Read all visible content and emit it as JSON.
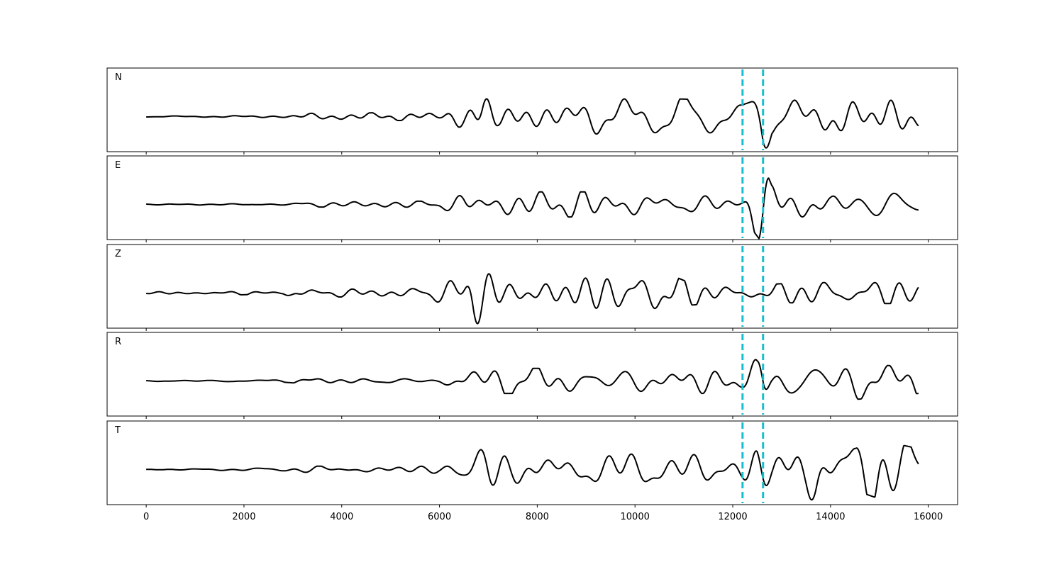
{
  "chart_data": {
    "type": "line",
    "title": "",
    "xlabel": "",
    "ylabel": "",
    "xlim": [
      -800,
      16600
    ],
    "x_ticks": [
      0,
      2000,
      4000,
      6000,
      8000,
      10000,
      12000,
      14000,
      16000
    ],
    "x_tick_labels": [
      "0",
      "2000",
      "4000",
      "6000",
      "8000",
      "10000",
      "12000",
      "14000",
      "16000"
    ],
    "sample_range": [
      0,
      15800
    ],
    "grid": false,
    "legend": "none",
    "trace_color": "#000000",
    "pick_color": "#17becf",
    "picks": [
      12200,
      12620
    ],
    "panels": [
      {
        "label": "N",
        "ylim": [
          -1,
          1
        ],
        "envelope": [
          [
            0,
            0.01
          ],
          [
            2800,
            0.03
          ],
          [
            3300,
            0.08
          ],
          [
            6000,
            0.1
          ],
          [
            6500,
            0.3
          ],
          [
            6900,
            0.7
          ],
          [
            7200,
            0.35
          ],
          [
            10000,
            0.45
          ],
          [
            11500,
            0.4
          ],
          [
            12200,
            0.35
          ],
          [
            12500,
            0.8
          ],
          [
            12620,
            1.0
          ],
          [
            12800,
            0.5
          ],
          [
            13600,
            0.6
          ],
          [
            14000,
            0.95
          ],
          [
            14500,
            0.6
          ],
          [
            15000,
            0.7
          ],
          [
            15800,
            0.5
          ]
        ]
      },
      {
        "label": "E",
        "ylim": [
          -1,
          1
        ],
        "envelope": [
          [
            0,
            0.01
          ],
          [
            2800,
            0.02
          ],
          [
            3300,
            0.06
          ],
          [
            6000,
            0.08
          ],
          [
            6500,
            0.35
          ],
          [
            7000,
            0.3
          ],
          [
            10000,
            0.3
          ],
          [
            12200,
            0.2
          ],
          [
            12400,
            0.6
          ],
          [
            12620,
            0.95
          ],
          [
            12800,
            0.45
          ],
          [
            13700,
            0.55
          ],
          [
            14000,
            0.35
          ],
          [
            15800,
            0.3
          ]
        ]
      },
      {
        "label": "Z",
        "ylim": [
          -1,
          1
        ],
        "envelope": [
          [
            0,
            0.01
          ],
          [
            600,
            0.06
          ],
          [
            2800,
            0.03
          ],
          [
            3100,
            0.2
          ],
          [
            3500,
            0.08
          ],
          [
            5800,
            0.15
          ],
          [
            6400,
            0.4
          ],
          [
            6700,
            1.0
          ],
          [
            7000,
            0.7
          ],
          [
            7300,
            0.45
          ],
          [
            10500,
            0.55
          ],
          [
            11000,
            0.3
          ],
          [
            12200,
            0.2
          ],
          [
            12600,
            0.2
          ],
          [
            13500,
            0.25
          ],
          [
            15800,
            0.25
          ]
        ]
      },
      {
        "label": "R",
        "ylim": [
          -1,
          1
        ],
        "envelope": [
          [
            0,
            0.01
          ],
          [
            2800,
            0.03
          ],
          [
            3300,
            0.07
          ],
          [
            6000,
            0.06
          ],
          [
            6500,
            0.35
          ],
          [
            7000,
            0.3
          ],
          [
            10000,
            0.3
          ],
          [
            12200,
            0.3
          ],
          [
            12500,
            0.6
          ],
          [
            12620,
            1.0
          ],
          [
            12800,
            0.4
          ],
          [
            13500,
            0.5
          ],
          [
            14000,
            0.5
          ],
          [
            15800,
            0.3
          ]
        ]
      },
      {
        "label": "T",
        "ylim": [
          -1,
          1
        ],
        "envelope": [
          [
            0,
            0.01
          ],
          [
            2800,
            0.04
          ],
          [
            3500,
            0.08
          ],
          [
            6000,
            0.1
          ],
          [
            6500,
            0.35
          ],
          [
            7000,
            0.6
          ],
          [
            7500,
            0.35
          ],
          [
            10000,
            0.4
          ],
          [
            12000,
            0.4
          ],
          [
            12200,
            0.45
          ],
          [
            12500,
            0.9
          ],
          [
            12620,
            0.8
          ],
          [
            12800,
            0.5
          ],
          [
            13500,
            0.6
          ],
          [
            13700,
            0.9
          ],
          [
            14000,
            0.8
          ],
          [
            14500,
            0.5
          ],
          [
            15000,
            0.7
          ],
          [
            15800,
            0.5
          ]
        ]
      }
    ]
  }
}
